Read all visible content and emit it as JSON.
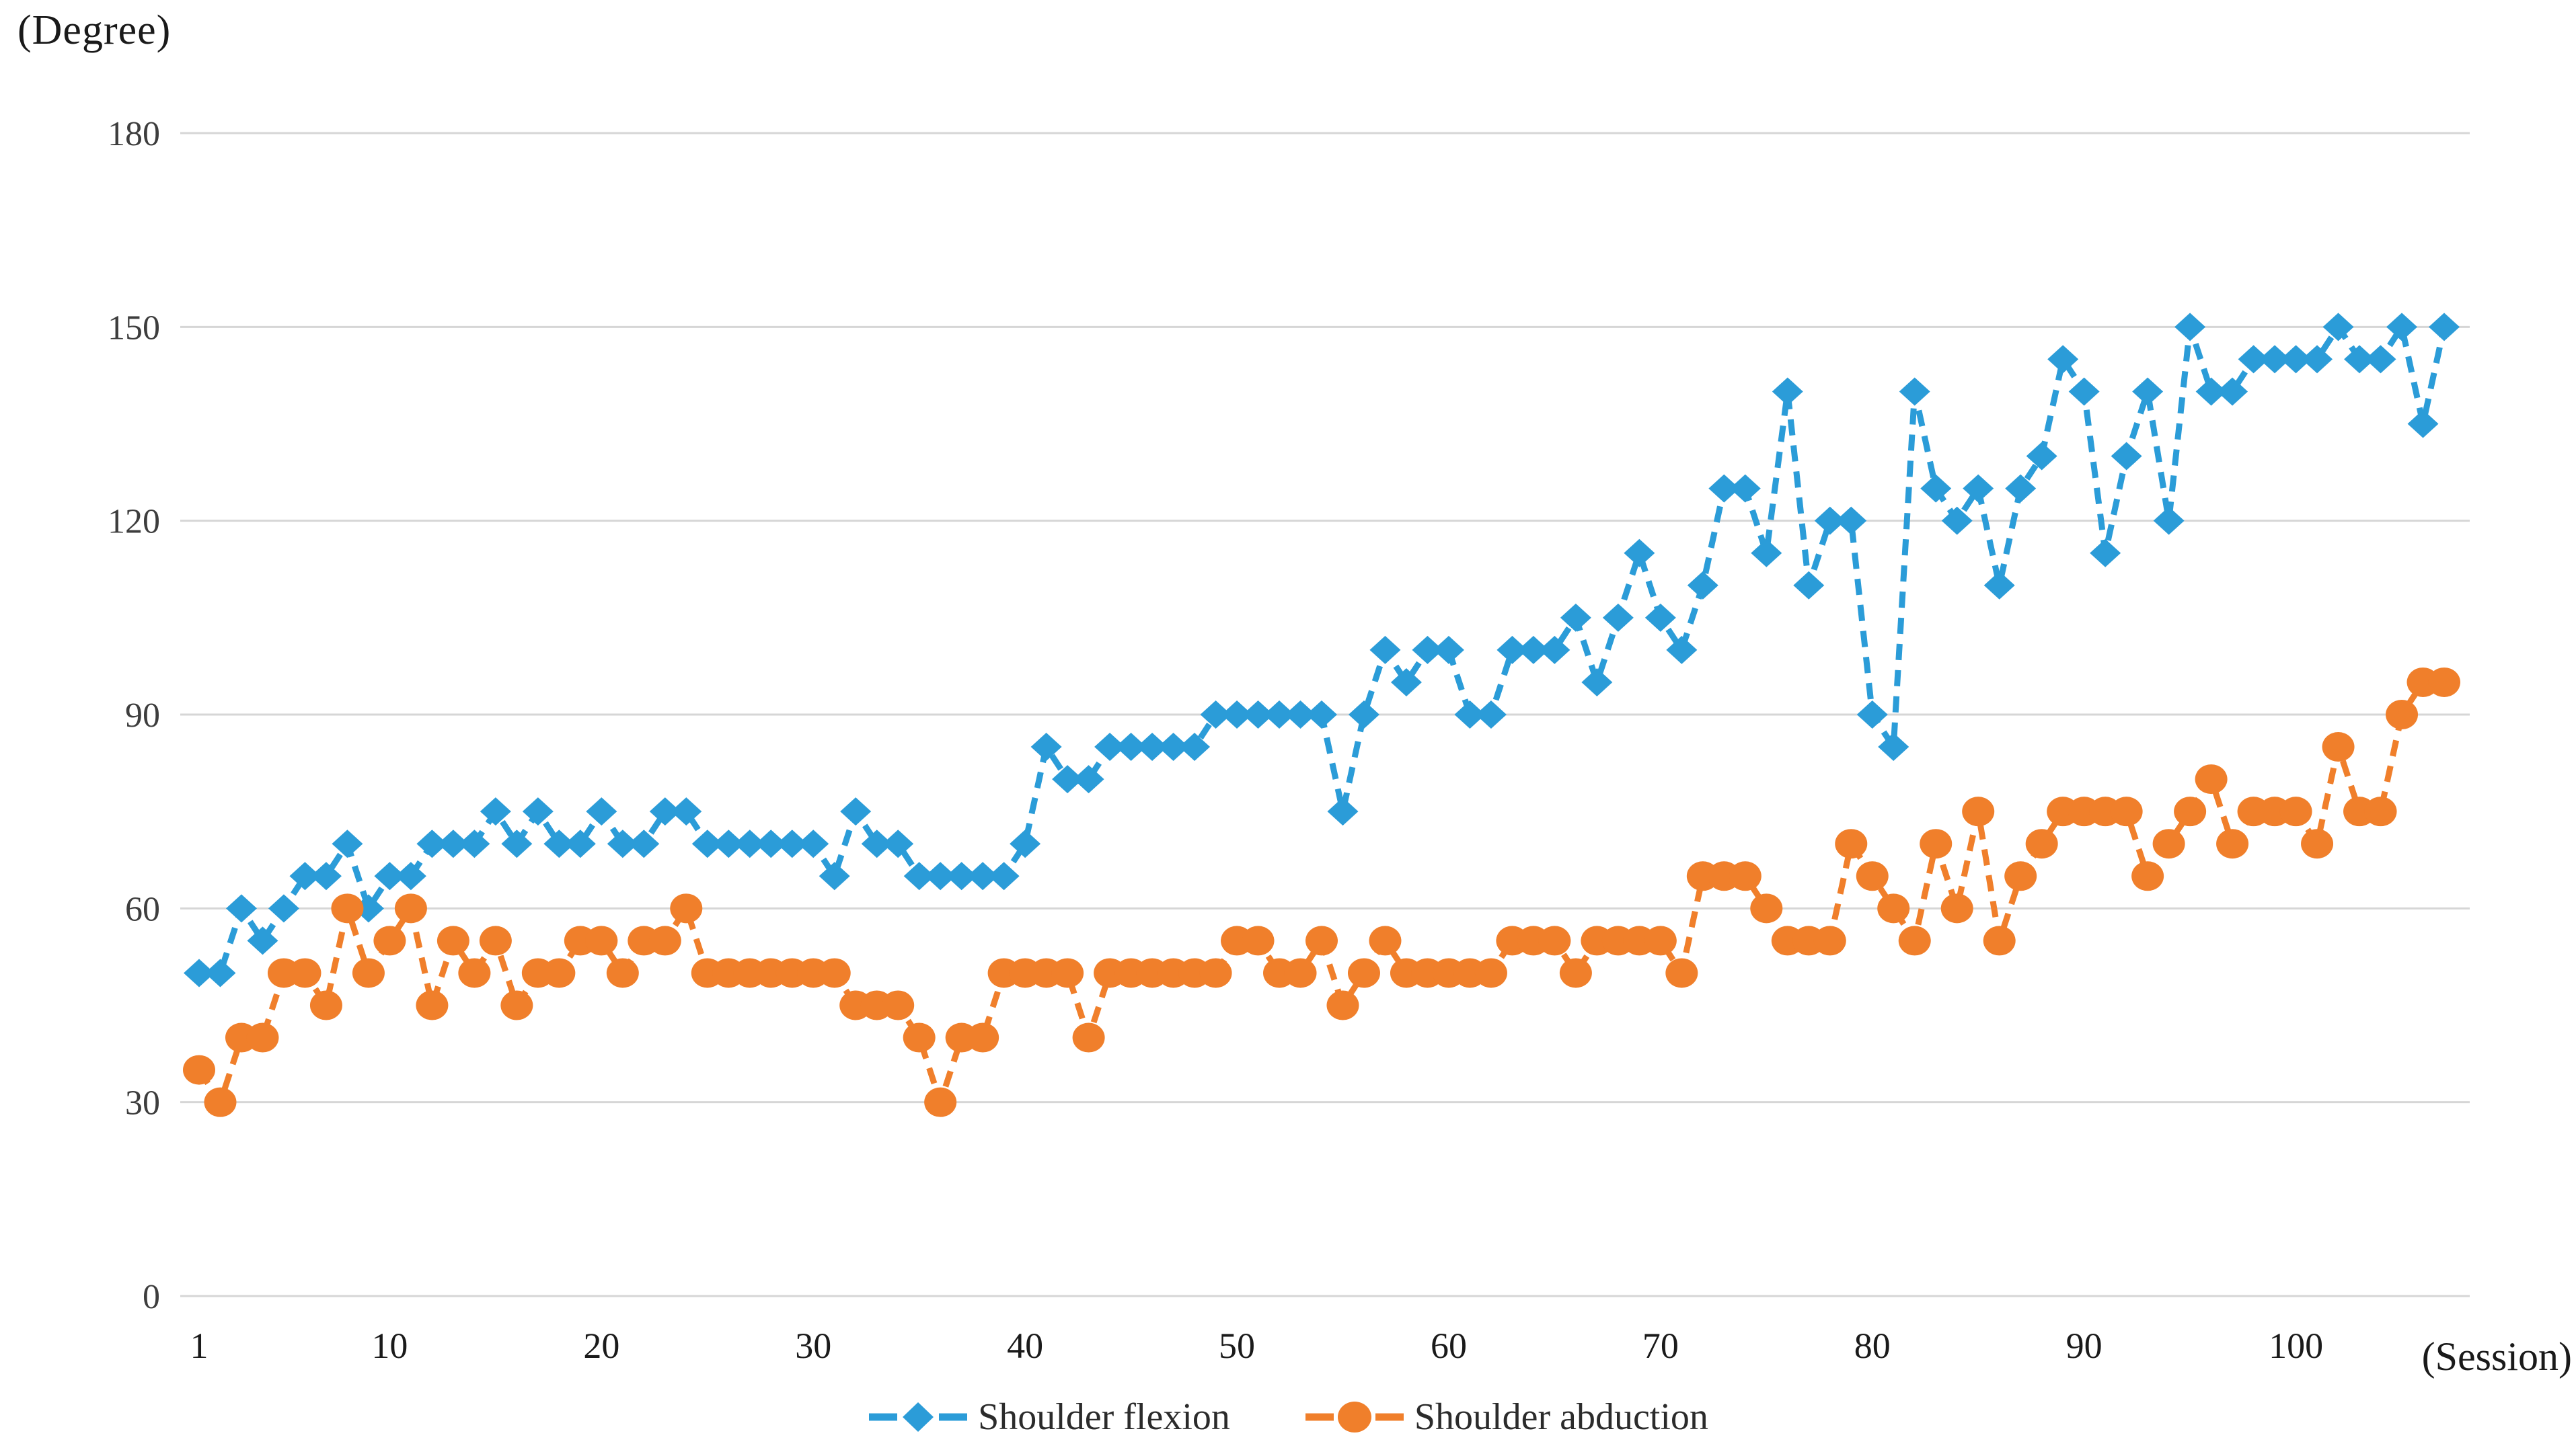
{
  "y_axis_title": "(Degree)",
  "x_axis_title": "(Session)",
  "colors": {
    "flexion": "#2b9cd8",
    "abduction": "#f07f2b",
    "gridline": "#d6d6d6",
    "text": "#1a1a1a"
  },
  "legend": {
    "items": [
      {
        "label": "Shoulder flexion",
        "color": "#2b9cd8",
        "marker": "diamond"
      },
      {
        "label": "Shoulder abduction",
        "color": "#f07f2b",
        "marker": "circle"
      }
    ]
  },
  "chart_data": {
    "type": "line",
    "title": "",
    "xlabel": "(Session)",
    "ylabel": "(Degree)",
    "ylim": [
      0,
      180
    ],
    "yticks": [
      0,
      30,
      60,
      90,
      120,
      150,
      180
    ],
    "x_tick_labels": [
      1,
      10,
      20,
      30,
      40,
      50,
      60,
      70,
      80,
      90,
      100
    ],
    "grid": "horizontal",
    "legend_position": "bottom",
    "line_style": "dashed",
    "sessions": 107,
    "series": [
      {
        "name": "Shoulder flexion",
        "color": "#2b9cd8",
        "marker": "diamond",
        "values": [
          50,
          50,
          60,
          55,
          60,
          65,
          65,
          70,
          60,
          65,
          65,
          70,
          70,
          70,
          75,
          70,
          75,
          70,
          70,
          75,
          70,
          70,
          75,
          75,
          70,
          70,
          70,
          70,
          70,
          70,
          65,
          75,
          70,
          70,
          65,
          65,
          65,
          65,
          65,
          70,
          85,
          80,
          80,
          85,
          85,
          85,
          85,
          85,
          90,
          90,
          90,
          90,
          90,
          90,
          75,
          90,
          100,
          95,
          100,
          100,
          90,
          90,
          100,
          100,
          100,
          105,
          95,
          105,
          115,
          105,
          100,
          110,
          125,
          125,
          115,
          140,
          110,
          120,
          120,
          90,
          85,
          140,
          125,
          120,
          125,
          110,
          125,
          130,
          145,
          140,
          115,
          130,
          140,
          120,
          150,
          140,
          140,
          145,
          145,
          145,
          145,
          150,
          145,
          145,
          150,
          135,
          150
        ]
      },
      {
        "name": "Shoulder abduction",
        "color": "#f07f2b",
        "marker": "circle",
        "values": [
          35,
          30,
          40,
          40,
          50,
          50,
          45,
          60,
          50,
          55,
          60,
          45,
          55,
          50,
          55,
          45,
          50,
          50,
          55,
          55,
          50,
          55,
          55,
          60,
          50,
          50,
          50,
          50,
          50,
          50,
          50,
          45,
          45,
          45,
          40,
          30,
          40,
          40,
          50,
          50,
          50,
          50,
          40,
          50,
          50,
          50,
          50,
          50,
          50,
          55,
          55,
          50,
          50,
          55,
          45,
          50,
          55,
          50,
          50,
          50,
          50,
          50,
          55,
          55,
          55,
          50,
          55,
          55,
          55,
          55,
          50,
          65,
          65,
          65,
          60,
          55,
          55,
          55,
          70,
          65,
          60,
          55,
          70,
          60,
          75,
          55,
          65,
          70,
          75,
          75,
          75,
          75,
          65,
          70,
          75,
          80,
          70,
          75,
          75,
          75,
          70,
          85,
          75,
          75,
          90,
          95,
          95
        ]
      }
    ]
  }
}
